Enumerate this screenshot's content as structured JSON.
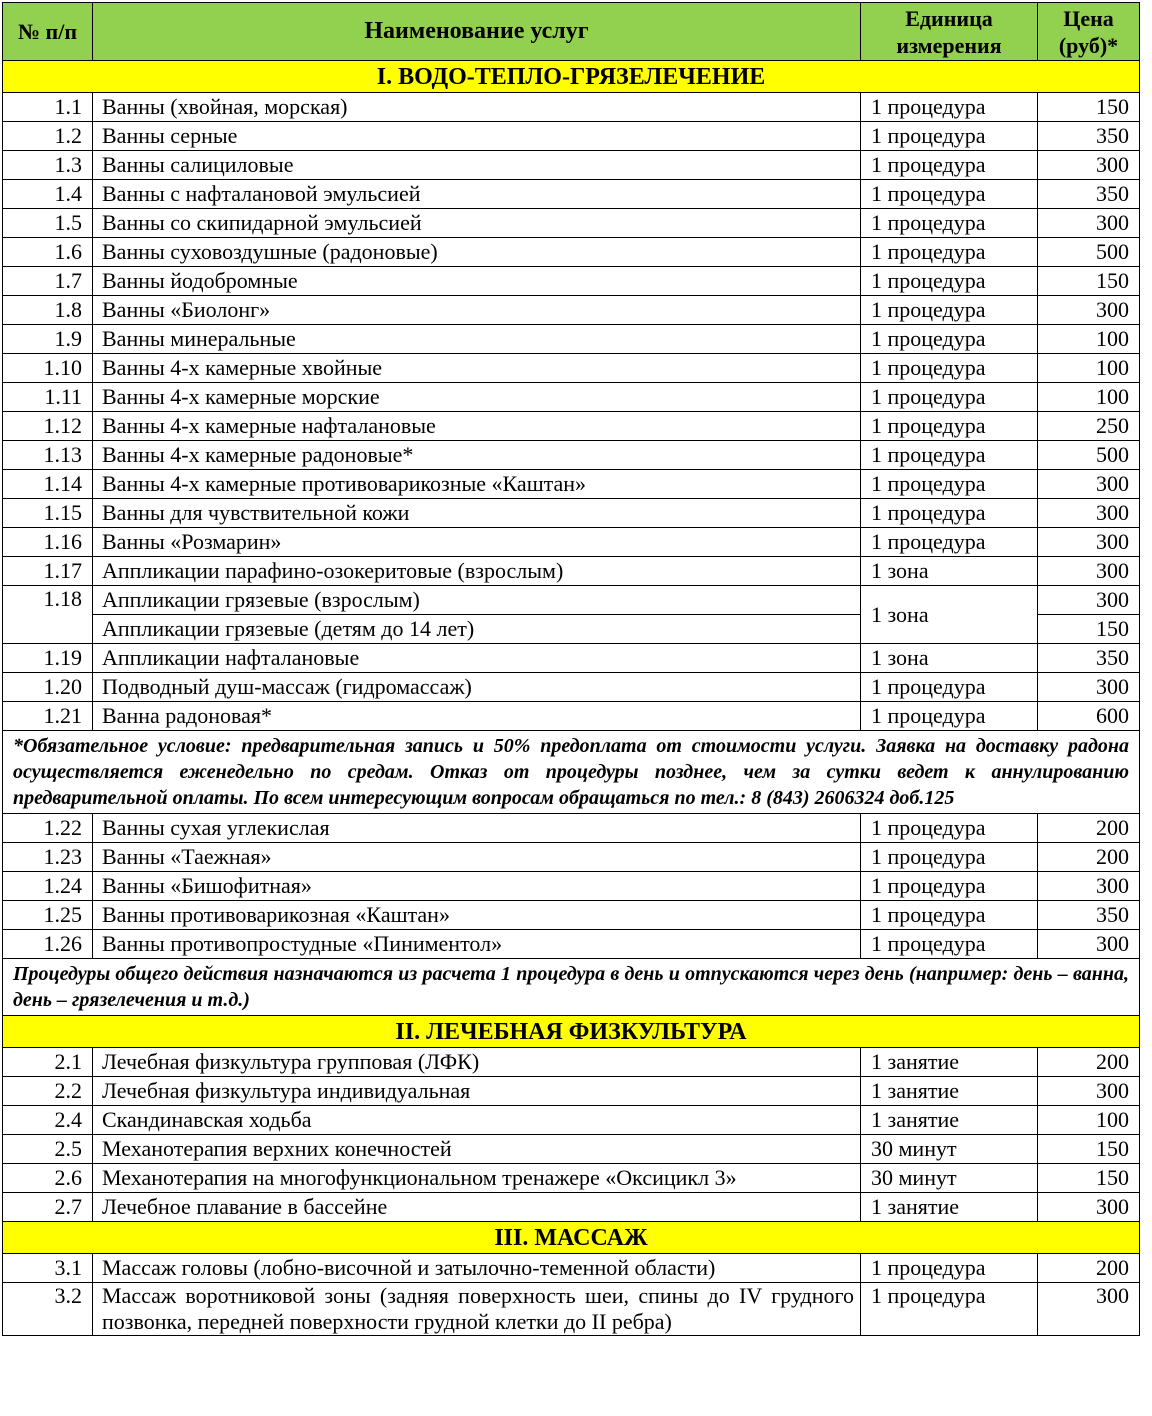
{
  "header": {
    "num": "№ п/п",
    "name": "Наименование услуг",
    "unit": "Единица измерения",
    "price": "Цена (руб)*"
  },
  "colors": {
    "header_bg": "#92D050",
    "section_bg": "#FFFF00"
  },
  "blocks": [
    {
      "type": "section",
      "title": "I. ВОДО-ТЕПЛО-ГРЯЗЕЛЕЧЕНИЕ"
    },
    {
      "type": "row",
      "num": "1.1",
      "name": "Ванны (хвойная, морская)",
      "unit": "1 процедура",
      "price": "150"
    },
    {
      "type": "row",
      "num": "1.2",
      "name": "Ванны серные",
      "unit": "1 процедура",
      "price": "350"
    },
    {
      "type": "row",
      "num": "1.3",
      "name": "Ванны салициловые",
      "unit": "1 процедура",
      "price": "300"
    },
    {
      "type": "row",
      "num": "1.4",
      "name": "Ванны с нафталановой эмульсией",
      "unit": "1 процедура",
      "price": "350"
    },
    {
      "type": "row",
      "num": "1.5",
      "name": "Ванны со скипидарной эмульсией",
      "unit": "1 процедура",
      "price": "300"
    },
    {
      "type": "row",
      "num": "1.6",
      "name": "Ванны суховоздушные (радоновые)",
      "unit": "1 процедура",
      "price": "500"
    },
    {
      "type": "row",
      "num": "1.7",
      "name": "Ванны йодобромные",
      "unit": "1 процедура",
      "price": "150"
    },
    {
      "type": "row",
      "num": "1.8",
      "name": "Ванны «Биолонг»",
      "unit": "1 процедура",
      "price": "300"
    },
    {
      "type": "row",
      "num": "1.9",
      "name": "Ванны минеральные",
      "unit": "1 процедура",
      "price": "100"
    },
    {
      "type": "row",
      "num": "1.10",
      "name": "Ванны 4-х камерные хвойные",
      "unit": "1 процедура",
      "price": "100"
    },
    {
      "type": "row",
      "num": "1.11",
      "name": "Ванны 4-х камерные морские",
      "unit": "1 процедура",
      "price": "100"
    },
    {
      "type": "row",
      "num": "1.12",
      "name": "Ванны 4-х камерные нафталановые",
      "unit": "1 процедура",
      "price": "250"
    },
    {
      "type": "row",
      "num": "1.13",
      "name": "Ванны 4-х камерные радоновые*",
      "unit": "1 процедура",
      "price": "500"
    },
    {
      "type": "row",
      "num": "1.14",
      "name": "Ванны 4-х камерные противоварикозные «Каштан»",
      "unit": "1 процедура",
      "price": "300"
    },
    {
      "type": "row",
      "num": "1.15",
      "name": "Ванны для чувствительной кожи",
      "unit": "1 процедура",
      "price": "300"
    },
    {
      "type": "row",
      "num": "1.16",
      "name": "Ванны «Розмарин»",
      "unit": "1 процедура",
      "price": "300"
    },
    {
      "type": "row",
      "num": "1.17",
      "name": "Аппликации парафино-озокеритовые (взрослым)",
      "unit": "1 зона",
      "price": "300"
    },
    {
      "type": "split",
      "num": "1.18",
      "unit": "1 зона",
      "items": [
        {
          "name": "Аппликации грязевые (взрослым)",
          "price": "300"
        },
        {
          "name": "Аппликации грязевые (детям до 14 лет)",
          "price": "150"
        }
      ]
    },
    {
      "type": "row",
      "num": "1.19",
      "name": "Аппликации нафталановые",
      "unit": "1 зона",
      "price": "350"
    },
    {
      "type": "row",
      "num": "1.20",
      "name": "Подводный душ-массаж (гидромассаж)",
      "unit": "1 процедура",
      "price": "300"
    },
    {
      "type": "row",
      "num": "1.21",
      "name": "Ванна радоновая*",
      "unit": "1 процедура",
      "price": "600"
    },
    {
      "type": "note",
      "text": "*Обязательное условие: предварительная запись и 50% предоплата от стоимости услуги. Заявка на доставку радона осуществляется еженедельно по средам. Отказ от процедуры позднее, чем за сутки ведет к аннулированию предварительной оплаты. По всем интересующим вопросам обращаться по тел.: 8 (843) 2606324 доб.125"
    },
    {
      "type": "row",
      "num": "1.22",
      "name": "Ванны сухая углекислая",
      "unit": "1 процедура",
      "price": "200"
    },
    {
      "type": "row",
      "num": "1.23",
      "name": "Ванны «Таежная»",
      "unit": "1 процедура",
      "price": "200"
    },
    {
      "type": "row",
      "num": "1.24",
      "name": "Ванны «Бишофитная»",
      "unit": "1 процедура",
      "price": "300"
    },
    {
      "type": "row",
      "num": "1.25",
      "name": "Ванны противоварикозная «Каштан»",
      "unit": "1 процедура",
      "price": "350"
    },
    {
      "type": "row",
      "num": "1.26",
      "name": "Ванны противопростудные «Пиниментол»",
      "unit": "1 процедура",
      "price": "300"
    },
    {
      "type": "note",
      "text": "Процедуры общего действия назначаются из расчета 1 процедура в день и отпускаются через день (например: день – ванна, день – грязелечения и т.д.)"
    },
    {
      "type": "section",
      "title": "II. ЛЕЧЕБНАЯ ФИЗКУЛЬТУРА"
    },
    {
      "type": "row",
      "num": "2.1",
      "name": "Лечебная физкультура групповая (ЛФК)",
      "unit": "1 занятие",
      "price": "200"
    },
    {
      "type": "row",
      "num": "2.2",
      "name": "Лечебная физкультура индивидуальная",
      "unit": "1 занятие",
      "price": "300"
    },
    {
      "type": "row",
      "num": "2.4",
      "name": "Скандинавская ходьба",
      "unit": "1 занятие",
      "price": "100"
    },
    {
      "type": "row",
      "num": "2.5",
      "name": "Механотерапия верхних конечностей",
      "unit": "30 минут",
      "price": "150"
    },
    {
      "type": "row",
      "num": "2.6",
      "name": "Механотерапия на многофункциональном тренажере «Оксицикл 3»",
      "unit": "30 минут",
      "price": "150"
    },
    {
      "type": "row",
      "num": "2.7",
      "name": "Лечебное плавание в бассейне",
      "unit": "1 занятие",
      "price": "300"
    },
    {
      "type": "section",
      "title": "III. МАССАЖ"
    },
    {
      "type": "row",
      "num": "3.1",
      "name": "Массаж головы (лобно-височной и затылочно-теменной области)",
      "unit": "1 процедура",
      "price": "200"
    },
    {
      "type": "row",
      "num": "3.2",
      "name": "Массаж воротниковой зоны (задняя поверхность шеи, спины до IV грудного позвонка, передней поверхности грудной клетки до II ребра)",
      "unit": "1 процедура",
      "price": "300",
      "wrap": true
    }
  ]
}
